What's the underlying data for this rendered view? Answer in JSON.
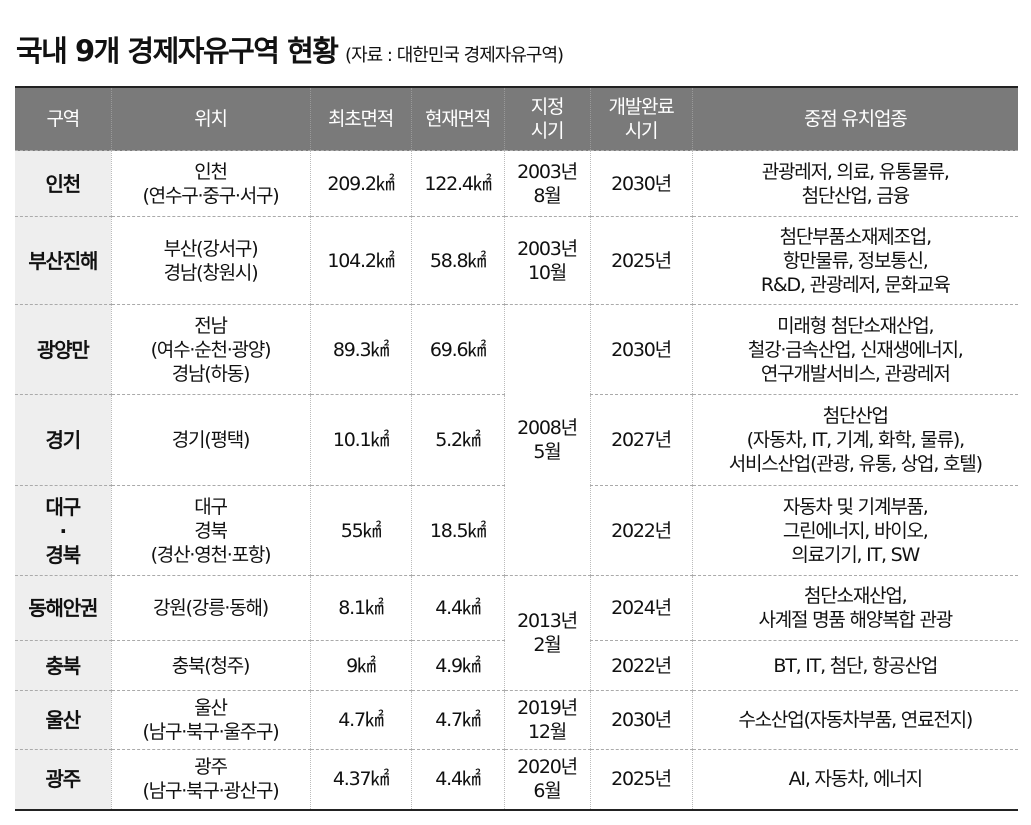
{
  "title": {
    "main": "국내 9개 경제자유구역 현황",
    "source": "(자료 : 대한민국 경제자유구역)"
  },
  "columns": [
    "구역",
    "위치",
    "최초면적",
    "현재면적",
    "지정\n시기",
    "개발완료\n시기",
    "중점 유치업종"
  ],
  "rows": [
    {
      "zone": "인천",
      "location": "인천\n(연수구·중구·서구)",
      "initial_area": "209.2㎢",
      "current_area": "122.4㎢",
      "designated": "2003년\n8월",
      "completion": "2030년",
      "industries": "관광레저, 의료, 유통물류,\n첨단산업, 금융"
    },
    {
      "zone": "부산진해",
      "location": "부산(강서구)\n경남(창원시)",
      "initial_area": "104.2㎢",
      "current_area": "58.8㎢",
      "designated": "2003년\n10월",
      "completion": "2025년",
      "industries": "첨단부품소재제조업,\n항만물류, 정보통신,\nR&D, 관광레저, 문화교육"
    },
    {
      "zone": "광양만",
      "location": "전남\n(여수·순천·광양)\n경남(하동)",
      "initial_area": "89.3㎢",
      "current_area": "69.6㎢",
      "designated": "2008년\n5월",
      "designated_rowspan": 3,
      "completion": "2030년",
      "industries": "미래형 첨단소재산업,\n철강·금속산업, 신재생에너지,\n연구개발서비스, 관광레저"
    },
    {
      "zone": "경기",
      "location": "경기(평택)",
      "initial_area": "10.1㎢",
      "current_area": "5.2㎢",
      "completion": "2027년",
      "industries": "첨단산업\n(자동차, IT, 기계, 화학, 물류),\n서비스산업(관광, 유통, 상업, 호텔)"
    },
    {
      "zone": "대구\n·\n경북",
      "location": "대구\n경북\n(경산·영천·포항)",
      "initial_area": "55㎢",
      "current_area": "18.5㎢",
      "completion": "2022년",
      "industries": "자동차 및 기계부품,\n그린에너지, 바이오,\n의료기기, IT, SW"
    },
    {
      "zone": "동해안권",
      "location": "강원(강릉·동해)",
      "initial_area": "8.1㎢",
      "current_area": "4.4㎢",
      "designated": "2013년\n2월",
      "designated_rowspan": 2,
      "completion": "2024년",
      "industries": "첨단소재산업,\n사계절 명품 해양복합 관광"
    },
    {
      "zone": "충북",
      "location": "충북(청주)",
      "initial_area": "9㎢",
      "current_area": "4.9㎢",
      "completion": "2022년",
      "industries": "BT, IT, 첨단, 항공산업"
    },
    {
      "zone": "울산",
      "location": "울산\n(남구·북구·울주구)",
      "initial_area": "4.7㎢",
      "current_area": "4.7㎢",
      "designated": "2019년\n12월",
      "completion": "2030년",
      "industries": "수소산업(자동차부품, 연료전지)"
    },
    {
      "zone": "광주",
      "location": "광주\n(남구·북구·광산구)",
      "initial_area": "4.37㎢",
      "current_area": "4.4㎢",
      "designated": "2020년\n6월",
      "completion": "2025년",
      "industries": "AI, 자동차, 에너지"
    }
  ],
  "colors": {
    "header_bg": "#7a7a7a",
    "zone_bg": "#eeeeee"
  }
}
